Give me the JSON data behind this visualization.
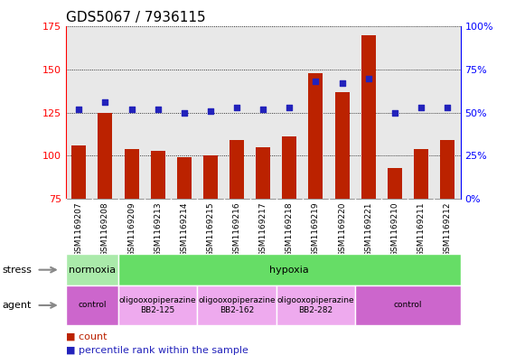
{
  "title": "GDS5067 / 7936115",
  "samples": [
    "GSM1169207",
    "GSM1169208",
    "GSM1169209",
    "GSM1169213",
    "GSM1169214",
    "GSM1169215",
    "GSM1169216",
    "GSM1169217",
    "GSM1169218",
    "GSM1169219",
    "GSM1169220",
    "GSM1169221",
    "GSM1169210",
    "GSM1169211",
    "GSM1169212"
  ],
  "counts": [
    106,
    125,
    104,
    103,
    99,
    100,
    109,
    105,
    111,
    148,
    137,
    170,
    93,
    104,
    109
  ],
  "percentiles": [
    52,
    56,
    52,
    52,
    50,
    51,
    53,
    52,
    53,
    68,
    67,
    70,
    50,
    53,
    53
  ],
  "ylim_left": [
    75,
    175
  ],
  "ylim_right": [
    0,
    100
  ],
  "yticks_left": [
    75,
    100,
    125,
    150,
    175
  ],
  "yticks_right": [
    0,
    25,
    50,
    75,
    100
  ],
  "ytick_labels_right": [
    "0%",
    "25%",
    "50%",
    "75%",
    "100%"
  ],
  "bar_color": "#bb2200",
  "dot_color": "#2222bb",
  "plot_bg": "#e8e8e8",
  "label_bg": "#c8c8c8",
  "normoxia_color": "#aaeaaa",
  "hypoxia_color": "#66dd66",
  "control_color": "#cc66cc",
  "oligo_color": "#eeaaee",
  "stress_groups": [
    {
      "label": "normoxia",
      "start": 0,
      "end": 2,
      "color_key": "normoxia_color"
    },
    {
      "label": "hypoxia",
      "start": 2,
      "end": 15,
      "color_key": "hypoxia_color"
    }
  ],
  "agent_groups": [
    {
      "label": "control",
      "start": 0,
      "end": 2,
      "color_key": "control_color"
    },
    {
      "label": "oligooxopiperazine\nBB2-125",
      "start": 2,
      "end": 5,
      "color_key": "oligo_color"
    },
    {
      "label": "oligooxopiperazine\nBB2-162",
      "start": 5,
      "end": 8,
      "color_key": "oligo_color"
    },
    {
      "label": "oligooxopiperazine\nBB2-282",
      "start": 8,
      "end": 11,
      "color_key": "oligo_color"
    },
    {
      "label": "control",
      "start": 11,
      "end": 15,
      "color_key": "control_color"
    }
  ],
  "stress_label": "stress",
  "agent_label": "agent",
  "legend_count": "count",
  "legend_percentile": "percentile rank within the sample"
}
